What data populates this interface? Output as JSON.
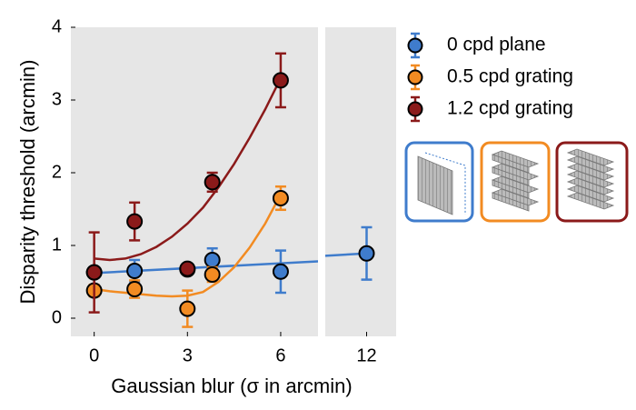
{
  "chart_data": {
    "type": "scatter",
    "xlabel": "Gaussian blur (σ in arcmin)",
    "ylabel": "Disparity threshold (arcmin)",
    "ylim": [
      -0.25,
      4
    ],
    "yticks": [
      0,
      1,
      2,
      3,
      4
    ],
    "panels": [
      {
        "xlim": [
          -0.75,
          7.2
        ],
        "xticks": [
          0,
          3,
          6
        ]
      },
      {
        "xlim": [
          10.6,
          13
        ],
        "xticks": [
          12
        ]
      }
    ],
    "series": [
      {
        "name": "0 cpd plane",
        "color": "#3f7ccc",
        "x": [
          0,
          1.3,
          3,
          3.8,
          6,
          12
        ],
        "values": [
          0.63,
          0.65,
          0.67,
          0.8,
          0.64,
          0.89
        ],
        "errors": [
          0.07,
          0.15,
          0.05,
          0.16,
          0.29,
          0.36
        ],
        "fit_x": [
          0,
          12
        ],
        "fit_values": [
          0.62,
          0.89
        ]
      },
      {
        "name": "0.5 cpd grating",
        "color": "#f28b22",
        "x": [
          0,
          1.3,
          3,
          3.8,
          6
        ],
        "values": [
          0.38,
          0.4,
          0.13,
          0.6,
          1.65
        ],
        "errors": [
          0.08,
          0.12,
          0.25,
          0.1,
          0.16
        ],
        "fit_x": [
          0,
          0.5,
          1,
          1.5,
          2,
          2.5,
          3,
          3.5,
          4,
          4.5,
          5,
          5.5,
          6
        ],
        "fit_values": [
          0.4,
          0.37,
          0.35,
          0.33,
          0.31,
          0.3,
          0.31,
          0.36,
          0.5,
          0.7,
          0.97,
          1.3,
          1.7
        ]
      },
      {
        "name": "1.2 cpd grating",
        "color": "#8b1a1a",
        "x": [
          0,
          1.3,
          3,
          3.8,
          6
        ],
        "values": [
          0.63,
          1.33,
          0.68,
          1.87,
          3.27
        ],
        "errors": [
          0.55,
          0.26,
          0.05,
          0.13,
          0.37
        ],
        "fit_x": [
          0,
          0.5,
          1,
          1.5,
          2,
          2.5,
          3,
          3.5,
          4,
          4.5,
          5,
          5.5,
          6
        ],
        "fit_values": [
          0.82,
          0.8,
          0.82,
          0.88,
          0.98,
          1.12,
          1.3,
          1.52,
          1.8,
          2.12,
          2.48,
          2.87,
          3.3
        ]
      }
    ]
  }
}
